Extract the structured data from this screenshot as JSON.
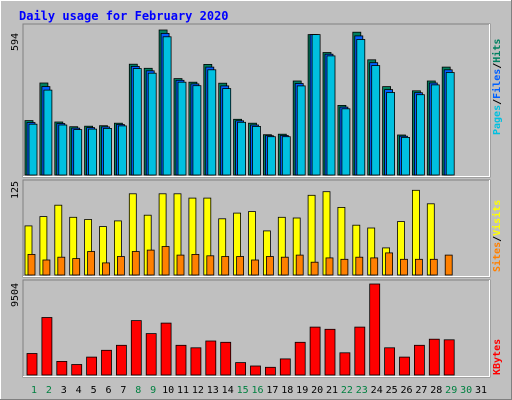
{
  "chart_data": {
    "type": "bar",
    "title": "Daily usage for February 2020",
    "categories": [
      "1",
      "2",
      "3",
      "4",
      "5",
      "6",
      "7",
      "8",
      "9",
      "10",
      "11",
      "12",
      "13",
      "14",
      "15",
      "16",
      "17",
      "18",
      "19",
      "20",
      "21",
      "22",
      "23",
      "24",
      "25",
      "26",
      "27",
      "28",
      "29",
      "30",
      "31"
    ],
    "weekend_days": [
      "1",
      "2",
      "8",
      "9",
      "15",
      "16",
      "22",
      "23",
      "29",
      "30"
    ],
    "panels": [
      {
        "name": "hits-files-pages",
        "ymax": 594,
        "ymax_label": "594",
        "side_labels": [
          "Pages",
          "/",
          "Files",
          "/",
          "Hits"
        ],
        "side_colors": [
          "#00c0e0",
          "#000000",
          "#0060ff",
          "#000000",
          "#008060"
        ],
        "series": [
          {
            "name": "Hits",
            "color": "#008060",
            "values": [
              223,
              377,
              217,
              198,
              200,
              202,
              212,
              454,
              437,
              594,
              395,
              380,
              453,
              376,
              228,
              212,
              165,
              167,
              385,
              575,
              502,
              285,
              585,
              472,
              362,
              164,
              345,
              385,
              442,
              0,
              0
            ]
          },
          {
            "name": "Files",
            "color": "#0060ff",
            "values": [
              215,
              362,
              211,
              192,
              194,
              197,
              207,
              445,
              427,
              580,
              388,
              373,
              442,
              365,
              222,
              205,
              161,
              162,
              375,
              575,
              495,
              278,
              570,
              460,
              350,
              159,
              337,
              377,
              431,
              0,
              0
            ]
          },
          {
            "name": "Pages",
            "color": "#00c0e0",
            "values": [
              208,
              348,
              205,
              186,
              188,
              191,
              201,
              436,
              417,
              566,
              380,
              366,
              431,
              354,
              216,
              199,
              157,
              157,
              365,
              575,
              488,
              271,
              555,
              448,
              338,
              154,
              329,
              369,
              420,
              0,
              0
            ]
          }
        ]
      },
      {
        "name": "visits-sites",
        "ymax": 125,
        "ymax_label": "125",
        "side_labels": [
          "Sites",
          "/",
          "Visits"
        ],
        "side_colors": [
          "#ff8000",
          "#000000",
          "#ffff00"
        ],
        "series": [
          {
            "name": "Visits",
            "color": "#ffff00",
            "values": [
              69,
              82,
              98,
              81,
              78,
              68,
              76,
              114,
              84,
              114,
              114,
              108,
              108,
              79,
              87,
              89,
              62,
              81,
              80,
              112,
              117,
              95,
              70,
              66,
              38,
              75,
              119,
              100,
              0,
              0,
              0
            ]
          },
          {
            "name": "Sites",
            "color": "#ff8000",
            "values": [
              29,
              21,
              25,
              23,
              33,
              17,
              26,
              33,
              35,
              40,
              28,
              29,
              27,
              26,
              26,
              21,
              26,
              25,
              28,
              18,
              24,
              22,
              25,
              24,
              31,
              22,
              22,
              22,
              28,
              0,
              0
            ]
          }
        ]
      },
      {
        "name": "kbytes",
        "ymax": 9504,
        "ymax_label": "9504",
        "side_labels": [
          "KBytes"
        ],
        "side_colors": [
          "#ff0000"
        ],
        "series": [
          {
            "name": "KBytes",
            "color": "#ff0000",
            "values": [
              2245,
              6001,
              1419,
              1096,
              1871,
              2581,
              3097,
              5677,
              4323,
              5419,
              3097,
              2839,
              3548,
              3419,
              1290,
              935,
              806,
              1677,
              3419,
              4999,
              4774,
              2323,
              4999,
              9504,
              2839,
              1871,
              3097,
              3742,
              3678,
              0,
              0
            ]
          }
        ]
      }
    ],
    "colors": {
      "title": "#0000ff",
      "weekday_label": "#000000",
      "weekend_label": "#008040",
      "plot_background": "#c0c0c0"
    }
  }
}
